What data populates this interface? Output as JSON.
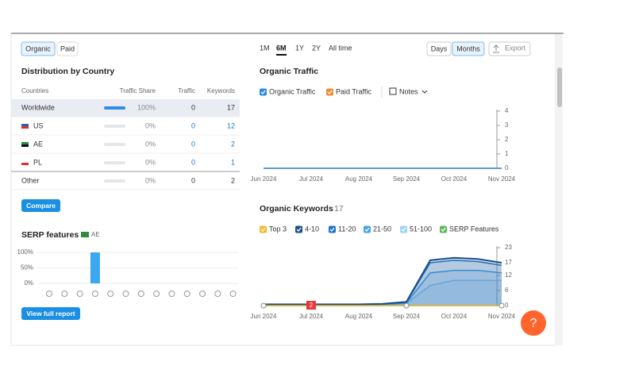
{
  "tabs": {
    "items": [
      "Organic",
      "Paid"
    ],
    "active": 0
  },
  "country": {
    "title": "Distribution by Country",
    "headers": [
      "Countries",
      "Traffic Share",
      "Traffic",
      "Keywords"
    ],
    "rows": [
      [
        "Worldwide",
        "100%",
        "0",
        "17"
      ],
      [
        "US",
        "0%",
        "0",
        "12"
      ],
      [
        "AE",
        "0%",
        "0",
        "2"
      ],
      [
        "PL",
        "0%",
        "0",
        "1"
      ],
      [
        "Other",
        "0%",
        "0",
        "2"
      ]
    ],
    "shares": [
      100,
      0,
      0,
      0,
      0
    ],
    "button": "Compare"
  },
  "serp": {
    "title": "SERP features",
    "region": "AE",
    "ylim": [
      0,
      100
    ],
    "yticks": [
      {
        "value": 0,
        "label": "0%"
      },
      {
        "value": 50,
        "label": "50%"
      },
      {
        "value": 100,
        "label": "100%"
      }
    ],
    "values": [
      0,
      0,
      0,
      100,
      0,
      0,
      0,
      0,
      0,
      0,
      0,
      0,
      0
    ],
    "button": "View full report"
  },
  "periods": {
    "items": [
      "1M",
      "6M",
      "1Y",
      "2Y",
      "All time"
    ],
    "active": 1
  },
  "view": {
    "items": [
      "Days",
      "Months"
    ],
    "active": 1
  },
  "export": "Export",
  "traffic": {
    "type": "line",
    "title": "Organic Traffic",
    "notes": "Notes",
    "categories": [
      "Jun 2024",
      "Jul 2024",
      "Aug 2024",
      "Sep 2024",
      "Oct 2024",
      "Nov 2024"
    ],
    "series": [
      {
        "name": "Organic Traffic",
        "color": "#2f8be6",
        "values": [
          0,
          0,
          0,
          0,
          0,
          0
        ]
      },
      {
        "name": "Paid Traffic",
        "color": "#f08a33",
        "values": [
          0,
          0,
          0,
          0,
          0,
          0
        ]
      }
    ],
    "ylim": [
      0,
      4
    ],
    "yticks": [
      0,
      1,
      2,
      3,
      4
    ]
  },
  "keywords": {
    "type": "line",
    "title": "Organic Keywords",
    "count": "17",
    "annotation": "2",
    "categories": [
      "Jun 2024",
      null,
      "Jul 2024",
      null,
      "Aug 2024",
      null,
      "Sep 2024",
      null,
      "Oct 2024",
      null,
      "Nov 2024"
    ],
    "series": [
      {
        "name": "Top 3",
        "color": "#f5b82e",
        "values": [
          0,
          0,
          0,
          0,
          0,
          0,
          0,
          0,
          0,
          0,
          0
        ]
      },
      {
        "name": "4-10",
        "color": "#1a4f8b",
        "values": [
          0.5,
          0.5,
          0.5,
          0.5,
          0.5,
          0.7,
          1.5,
          18,
          19,
          18.5,
          17
        ]
      },
      {
        "name": "11-20",
        "color": "#1f74c8",
        "values": [
          0.4,
          0.4,
          0.4,
          0.4,
          0.4,
          0.6,
          1.3,
          17,
          18,
          17.5,
          16
        ]
      },
      {
        "name": "21-50",
        "color": "#45a3e5",
        "values": [
          0.3,
          0.3,
          0.3,
          0.3,
          0.3,
          0.5,
          1,
          13,
          14,
          14,
          13
        ]
      },
      {
        "name": "51-100",
        "color": "#9fd3f5",
        "values": [
          0.2,
          0.2,
          0.2,
          0.2,
          0.2,
          0.4,
          0.8,
          8,
          10,
          10,
          10
        ]
      },
      {
        "name": "SERP Features",
        "color": "#5cb85c",
        "values": [
          0,
          0,
          0,
          0,
          0,
          0,
          0,
          0,
          0,
          0,
          0
        ]
      }
    ],
    "ylim": [
      0,
      23
    ],
    "yticks": [
      0,
      6,
      12,
      17,
      23
    ]
  },
  "help": "?"
}
